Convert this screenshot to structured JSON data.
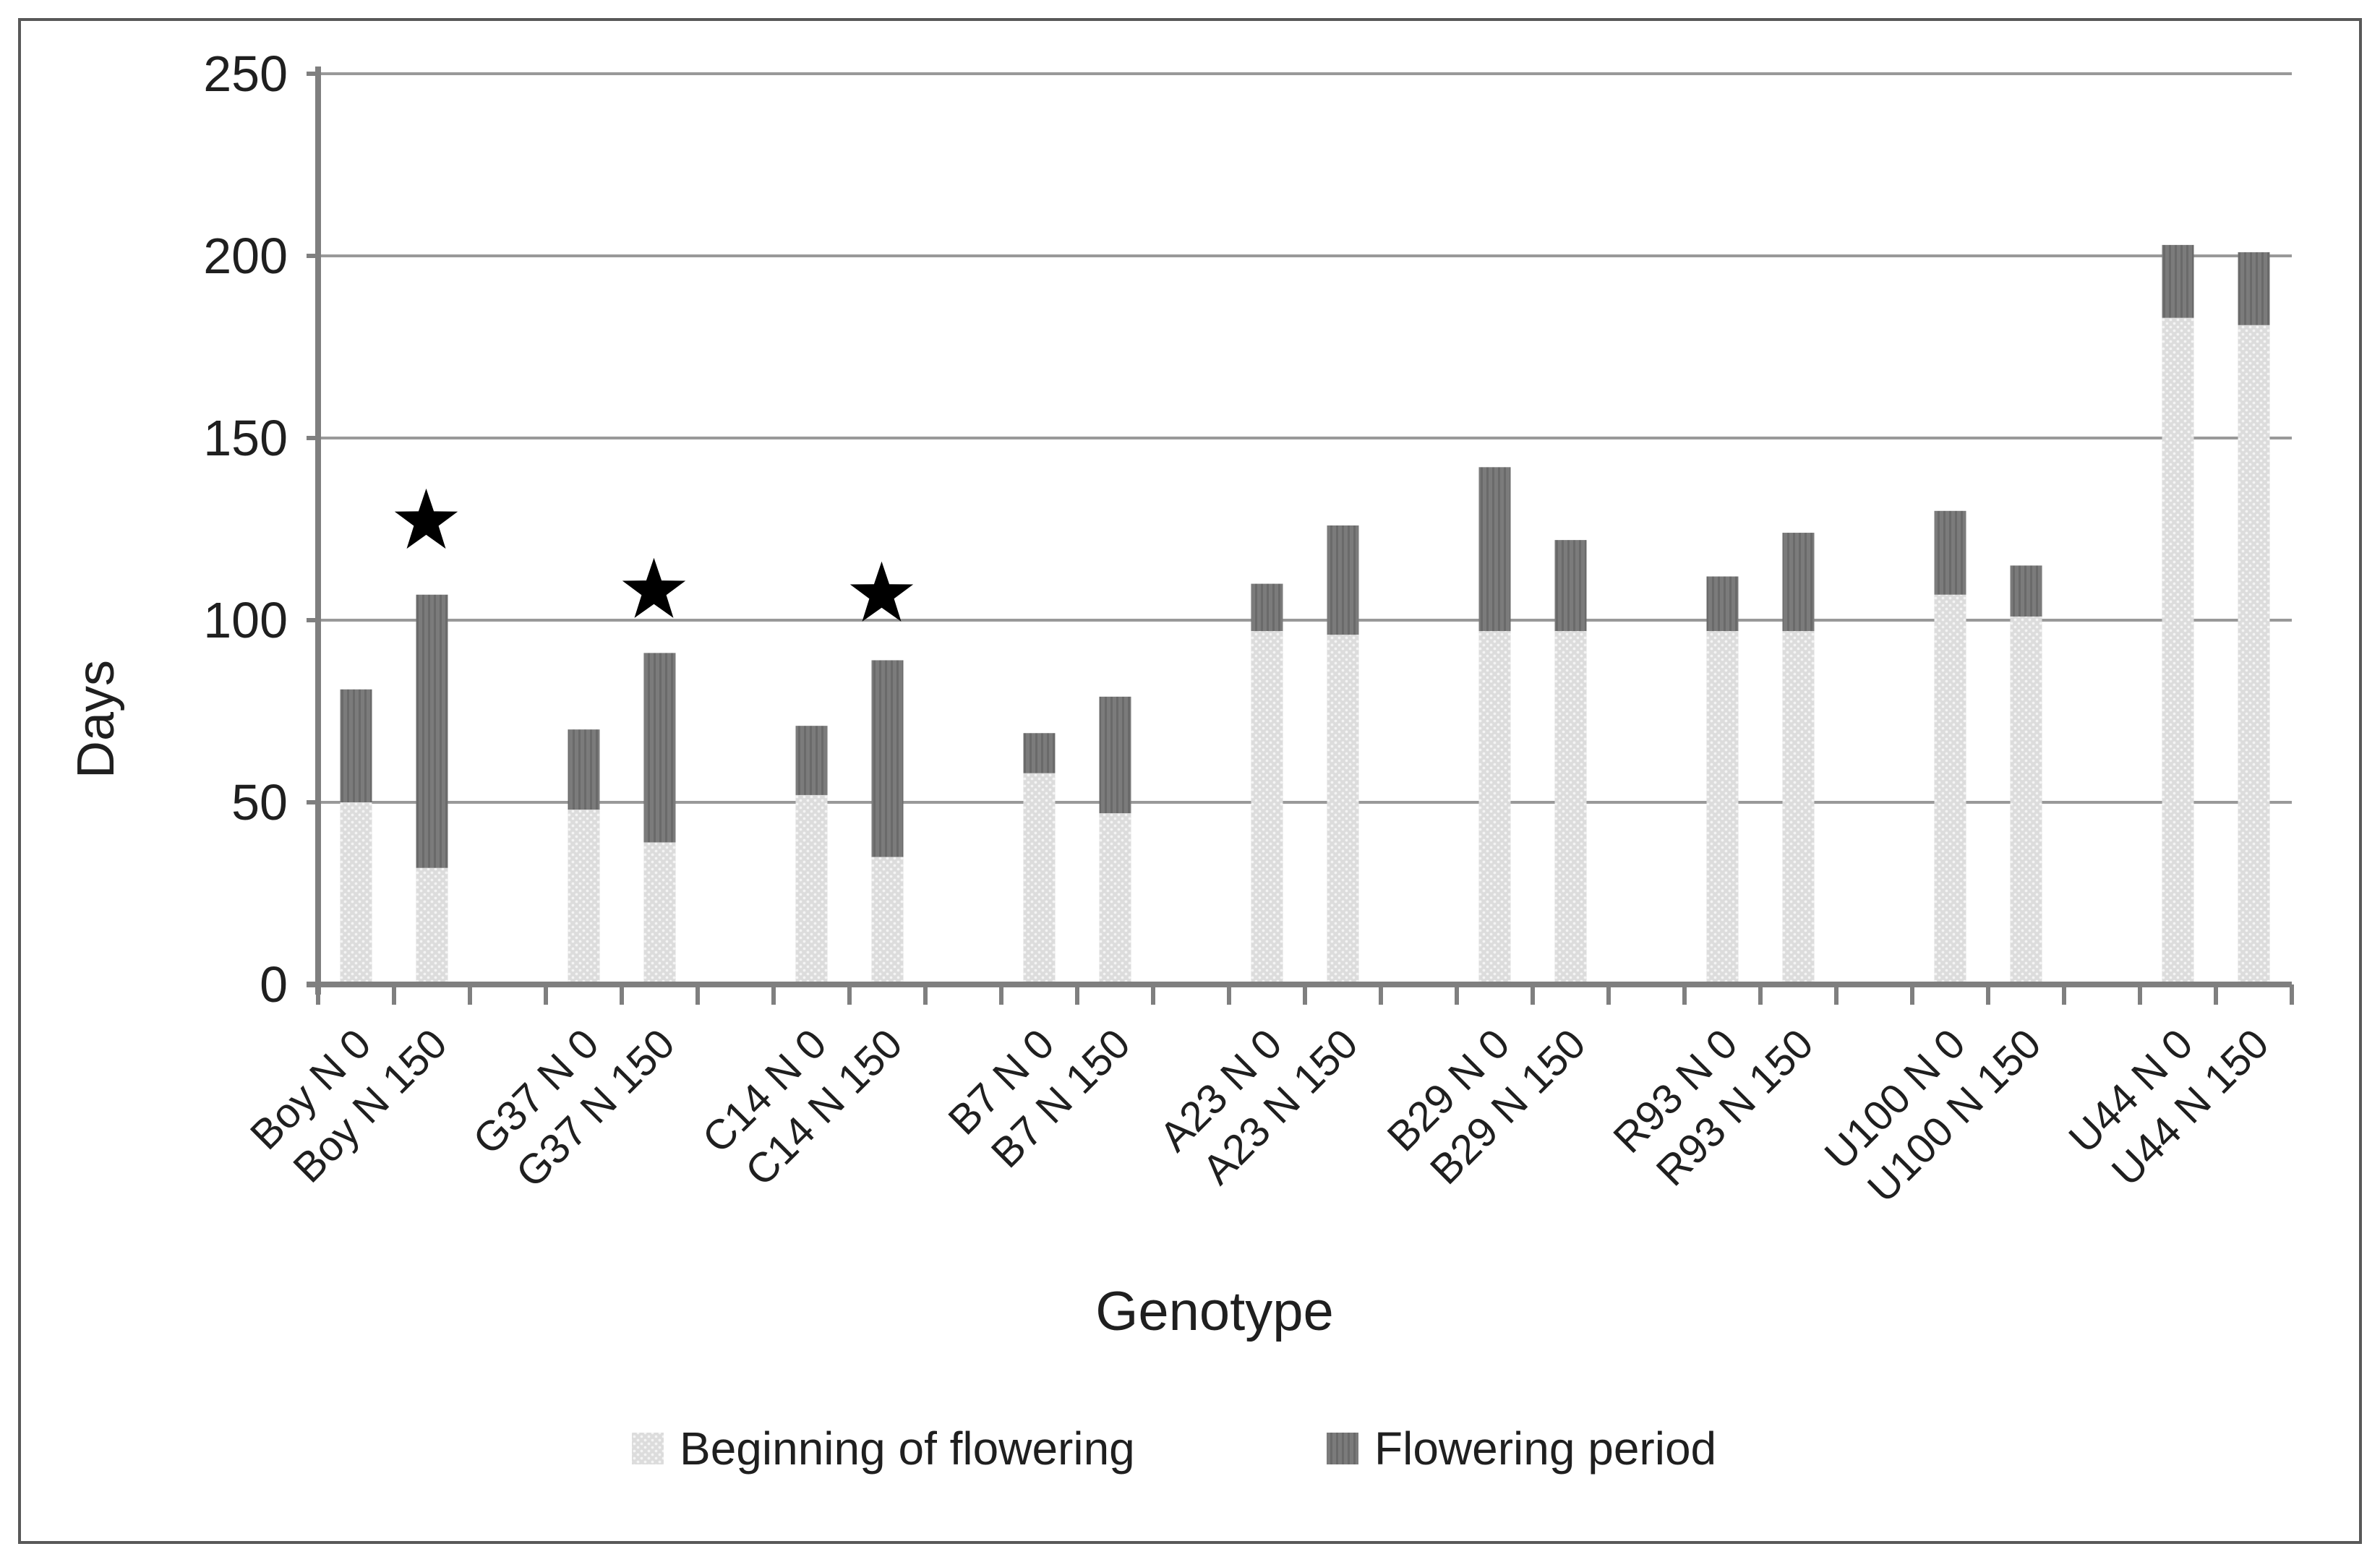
{
  "figure": {
    "background": "#ffffff",
    "border_color": "#595959",
    "text_color": "#1f1f1f",
    "gridline_color": "#999999",
    "axis_color": "#7f7f7f",
    "star_color": "#000000"
  },
  "chart_data": {
    "type": "bar",
    "stacked": true,
    "title": "",
    "xlabel": "Genotype",
    "ylabel": "Days",
    "ylim": [
      0,
      250
    ],
    "yticks": [
      0,
      50,
      100,
      150,
      200,
      250
    ],
    "grid": true,
    "legend_position": "bottom",
    "grouping": {
      "bars_per_group": 2,
      "gap_slots_between_groups": 1
    },
    "categories": [
      "Boy N 0",
      "Boy N 150",
      "G37 N 0",
      "G37 N 150",
      "C14 N 0",
      "C14 N 150",
      "B7 N 0",
      "B7 N 150",
      "A23 N 0",
      "A23 N 150",
      "B29 N 0",
      "B29 N 150",
      "R93 N 0",
      "R93 N 150",
      "U100 N 0",
      "U100 N 150",
      "U44 N 0",
      "U44 N 150"
    ],
    "series": [
      {
        "name": "Beginning of flowering",
        "color": "#dcdcdc",
        "pattern": "dots",
        "dot_color": "#f4f4f4",
        "values": [
          50,
          32,
          48,
          39,
          52,
          35,
          58,
          47,
          97,
          96,
          97,
          97,
          97,
          97,
          107,
          101,
          183,
          181
        ]
      },
      {
        "name": "Flowering period",
        "color": "#7b7b7b",
        "pattern": "vertical-stripes",
        "stripe_color": "#6a6a6a",
        "values": [
          31,
          75,
          22,
          52,
          19,
          54,
          11,
          32,
          13,
          30,
          45,
          25,
          15,
          27,
          23,
          14,
          20,
          20
        ]
      }
    ],
    "stack_totals": [
      81,
      107,
      70,
      91,
      71,
      89,
      69,
      79,
      110,
      126,
      142,
      122,
      112,
      124,
      130,
      115,
      203,
      201
    ],
    "annotations": {
      "star_marks": [
        {
          "category": "Boy N 150",
          "value": 127
        },
        {
          "category": "G37 N 150",
          "value": 108
        },
        {
          "category": "C14 N 150",
          "value": 107
        }
      ]
    }
  }
}
